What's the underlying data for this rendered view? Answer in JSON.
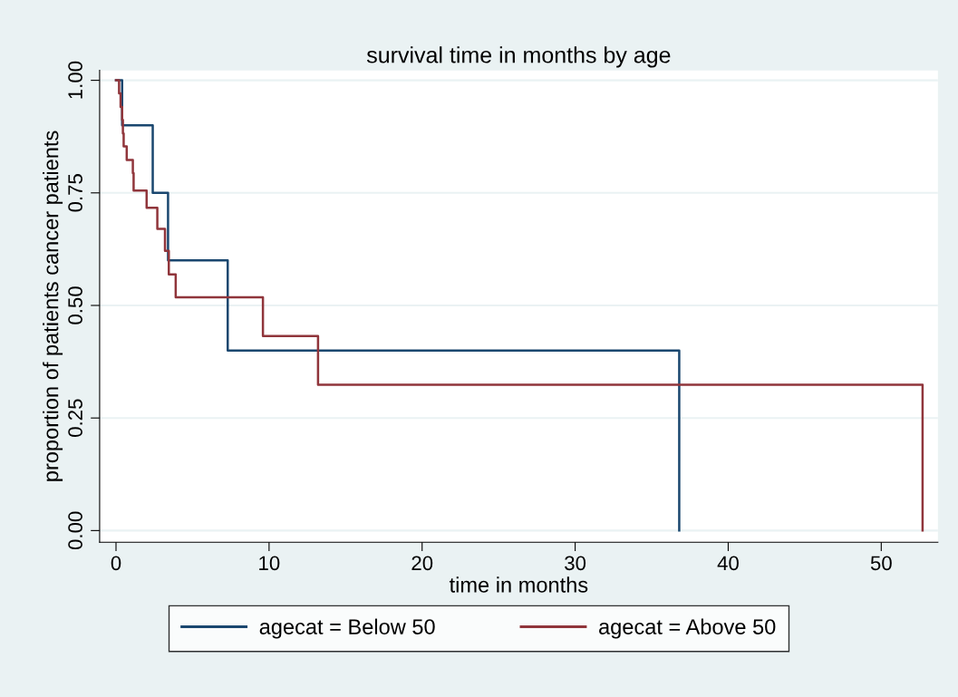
{
  "chart_data": {
    "type": "step",
    "title": "survival time in months by age",
    "xlabel": "time in months",
    "ylabel": "proportion of patients cancer patients",
    "series": [
      {
        "name": "agecat = Below 50",
        "color": "#1a476f",
        "x": [
          0,
          0.4,
          2.4,
          3.4,
          7.3,
          36.8
        ],
        "values": [
          1.0,
          0.9,
          0.75,
          0.6,
          0.4,
          0
        ]
      },
      {
        "name": "agecat = Above 50",
        "color": "#90353b",
        "x": [
          0,
          0.2,
          0.3,
          0.4,
          0.45,
          0.5,
          0.7,
          1.1,
          1.15,
          2.0,
          2.7,
          3.2,
          3.45,
          3.9,
          9.6,
          13.2,
          52.7
        ],
        "values": [
          1.0,
          0.971,
          0.941,
          0.912,
          0.882,
          0.853,
          0.823,
          0.794,
          0.755,
          0.717,
          0.67,
          0.621,
          0.569,
          0.518,
          0.432,
          0.324,
          0
        ]
      }
    ],
    "xlim": [
      -1.07,
      53.7
    ],
    "ylim": [
      -0.026,
      1.022
    ],
    "xticks": [
      0,
      10,
      20,
      30,
      40,
      50
    ],
    "yticks": [
      {
        "value": 0,
        "label": "0.00"
      },
      {
        "value": 0.25,
        "label": "0.25"
      },
      {
        "value": 0.5,
        "label": "0.50"
      },
      {
        "value": 0.75,
        "label": "0.75"
      },
      {
        "value": 1,
        "label": "1.00"
      }
    ],
    "grid": "y",
    "legend": "bottom"
  }
}
